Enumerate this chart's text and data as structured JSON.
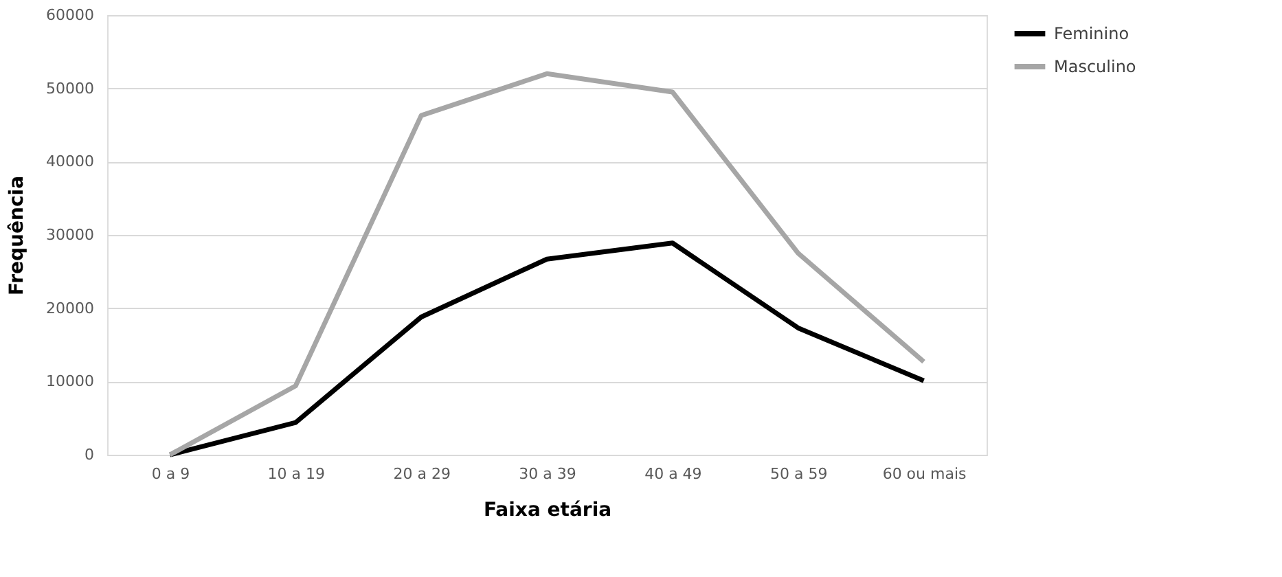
{
  "chart_data": {
    "type": "line",
    "xlabel": "Faixa etária",
    "ylabel": "Frequência",
    "categories": [
      "0 a 9",
      "10 a 19",
      "20 a 29",
      "30 a 39",
      "40 a 49",
      "50 a 59",
      "60  ou mais"
    ],
    "series": [
      {
        "name": "Feminino",
        "color": "#000000",
        "values": [
          0,
          4400,
          18800,
          26700,
          28900,
          17300,
          10100
        ]
      },
      {
        "name": "Masculino",
        "color": "#a6a6a6",
        "values": [
          0,
          9400,
          46300,
          52000,
          49500,
          27500,
          12700
        ]
      }
    ],
    "ylim": [
      0,
      60000
    ],
    "yticks": [
      0,
      10000,
      20000,
      30000,
      40000,
      50000,
      60000
    ],
    "grid": "y",
    "legend": "right",
    "marker": "none",
    "line_style": "solid"
  }
}
